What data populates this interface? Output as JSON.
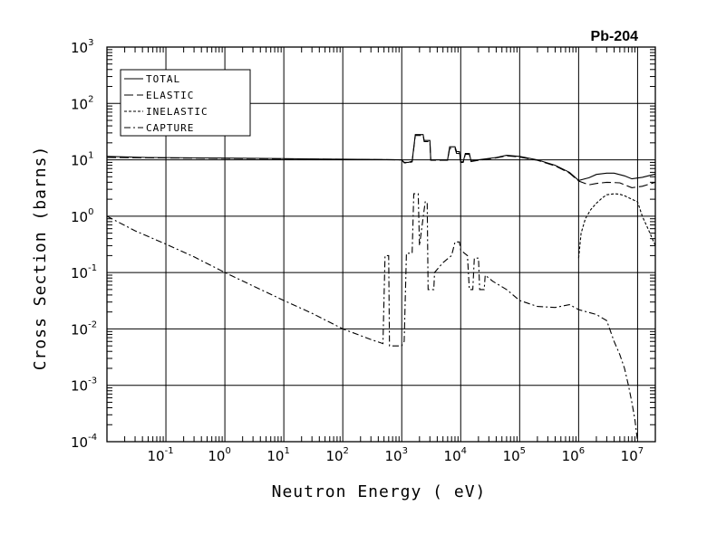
{
  "chart_data": {
    "type": "line",
    "title": "Pb-204",
    "xlabel": "Neutron Energy ( eV)",
    "ylabel": "Cross Section (barns)",
    "x_scale": "log",
    "y_scale": "log",
    "xlim": [
      0.01,
      20000000
    ],
    "ylim": [
      0.0001,
      1000
    ],
    "grid": true,
    "legend_position": "top-left",
    "x_ticks": [
      {
        "value": 0.1,
        "base": "10",
        "exp": "-1"
      },
      {
        "value": 1,
        "base": "10",
        "exp": "0"
      },
      {
        "value": 10,
        "base": "10",
        "exp": "1"
      },
      {
        "value": 100,
        "base": "10",
        "exp": "2"
      },
      {
        "value": 1000,
        "base": "10",
        "exp": "3"
      },
      {
        "value": 10000,
        "base": "10",
        "exp": "4"
      },
      {
        "value": 100000,
        "base": "10",
        "exp": "5"
      },
      {
        "value": 1000000,
        "base": "10",
        "exp": "6"
      },
      {
        "value": 10000000,
        "base": "10",
        "exp": "7"
      }
    ],
    "y_ticks": [
      {
        "value": 0.0001,
        "base": "10",
        "exp": "-4"
      },
      {
        "value": 0.001,
        "base": "10",
        "exp": "-3"
      },
      {
        "value": 0.01,
        "base": "10",
        "exp": "-2"
      },
      {
        "value": 0.1,
        "base": "10",
        "exp": "-1"
      },
      {
        "value": 1,
        "base": "10",
        "exp": "0"
      },
      {
        "value": 10,
        "base": "10",
        "exp": "1"
      },
      {
        "value": 100,
        "base": "10",
        "exp": "2"
      },
      {
        "value": 1000,
        "base": "10",
        "exp": "3"
      }
    ],
    "series": [
      {
        "name": "TOTAL",
        "dash": "solid",
        "points": [
          [
            0.01,
            11.5
          ],
          [
            0.05,
            11
          ],
          [
            0.5,
            10.8
          ],
          [
            5,
            10.6
          ],
          [
            50,
            10.3
          ],
          [
            500,
            10.1
          ],
          [
            1000,
            10
          ],
          [
            1100,
            9
          ],
          [
            1300,
            9
          ],
          [
            1500,
            9.5
          ],
          [
            1700,
            28
          ],
          [
            2300,
            28
          ],
          [
            2400,
            22
          ],
          [
            3000,
            22
          ],
          [
            3100,
            10
          ],
          [
            6000,
            10
          ],
          [
            6500,
            17
          ],
          [
            8000,
            17
          ],
          [
            8500,
            14
          ],
          [
            9500,
            14
          ],
          [
            10000,
            9.2
          ],
          [
            11000,
            9.2
          ],
          [
            12000,
            13
          ],
          [
            14000,
            13
          ],
          [
            15000,
            9.5
          ],
          [
            20000,
            10
          ],
          [
            40000,
            11
          ],
          [
            60000,
            12
          ],
          [
            100000,
            11.5
          ],
          [
            200000,
            10
          ],
          [
            400000,
            8
          ],
          [
            700000,
            6
          ],
          [
            1000000,
            4.3
          ],
          [
            1500000,
            4.8
          ],
          [
            2000000,
            5.5
          ],
          [
            3000000,
            5.8
          ],
          [
            4000000,
            5.8
          ],
          [
            6000000,
            5.2
          ],
          [
            8000000,
            4.6
          ],
          [
            12000000,
            4.9
          ],
          [
            20000000,
            5.6
          ]
        ]
      },
      {
        "name": "ELASTIC",
        "dash": "long",
        "points": [
          [
            0.01,
            11
          ],
          [
            0.1,
            10.8
          ],
          [
            1,
            10.6
          ],
          [
            10,
            10.4
          ],
          [
            100,
            10.2
          ],
          [
            1000,
            10
          ],
          [
            1100,
            8.8
          ],
          [
            1300,
            8.8
          ],
          [
            1500,
            9.2
          ],
          [
            1700,
            27
          ],
          [
            2300,
            27
          ],
          [
            2400,
            21
          ],
          [
            3000,
            21
          ],
          [
            3100,
            9.8
          ],
          [
            6000,
            9.8
          ],
          [
            6500,
            16
          ],
          [
            8000,
            16
          ],
          [
            8500,
            13
          ],
          [
            9500,
            13
          ],
          [
            10000,
            9
          ],
          [
            11000,
            9
          ],
          [
            12000,
            12.5
          ],
          [
            14000,
            12.5
          ],
          [
            15000,
            9.3
          ],
          [
            20000,
            9.8
          ],
          [
            40000,
            10.8
          ],
          [
            60000,
            11.8
          ],
          [
            100000,
            11.2
          ],
          [
            200000,
            9.8
          ],
          [
            400000,
            7.8
          ],
          [
            700000,
            5.8
          ],
          [
            1000000,
            4.2
          ],
          [
            1500000,
            3.6
          ],
          [
            2000000,
            3.8
          ],
          [
            3000000,
            4
          ],
          [
            5000000,
            3.9
          ],
          [
            8000000,
            3.2
          ],
          [
            12000000,
            3.4
          ],
          [
            20000000,
            4
          ]
        ]
      },
      {
        "name": "INELASTIC",
        "dash": "short",
        "points": [
          [
            1000000,
            0.18
          ],
          [
            1100000,
            0.5
          ],
          [
            1300000,
            0.9
          ],
          [
            1600000,
            1.3
          ],
          [
            2000000,
            1.7
          ],
          [
            2500000,
            2.1
          ],
          [
            3000000,
            2.4
          ],
          [
            4000000,
            2.5
          ],
          [
            5000000,
            2.45
          ],
          [
            6000000,
            2.3
          ],
          [
            8000000,
            2
          ],
          [
            10000000,
            1.8
          ],
          [
            12000000,
            1
          ],
          [
            15000000,
            0.6
          ],
          [
            20000000,
            0.3
          ]
        ]
      },
      {
        "name": "CAPTURE",
        "dash": "dashdot",
        "points": [
          [
            0.01,
            1
          ],
          [
            0.03,
            0.55
          ],
          [
            0.1,
            0.32
          ],
          [
            0.3,
            0.19
          ],
          [
            1,
            0.1
          ],
          [
            3,
            0.058
          ],
          [
            10,
            0.032
          ],
          [
            30,
            0.019
          ],
          [
            100,
            0.01
          ],
          [
            300,
            0.0065
          ],
          [
            480,
            0.0055
          ],
          [
            520,
            0.2
          ],
          [
            600,
            0.2
          ],
          [
            620,
            0.005
          ],
          [
            1000,
            0.005
          ],
          [
            1100,
            0.006
          ],
          [
            1200,
            0.22
          ],
          [
            1500,
            0.22
          ],
          [
            1600,
            2.5
          ],
          [
            1900,
            2.5
          ],
          [
            2000,
            0.3
          ],
          [
            2500,
            1.8
          ],
          [
            2700,
            1.8
          ],
          [
            2800,
            0.05
          ],
          [
            3500,
            0.05
          ],
          [
            3600,
            0.1
          ],
          [
            5000,
            0.15
          ],
          [
            7000,
            0.2
          ],
          [
            8000,
            0.35
          ],
          [
            9500,
            0.35
          ],
          [
            10000,
            0.25
          ],
          [
            13000,
            0.2
          ],
          [
            14000,
            0.05
          ],
          [
            16000,
            0.05
          ],
          [
            17000,
            0.18
          ],
          [
            20000,
            0.18
          ],
          [
            21000,
            0.05
          ],
          [
            25000,
            0.05
          ],
          [
            26000,
            0.09
          ],
          [
            35000,
            0.07
          ],
          [
            60000,
            0.05
          ],
          [
            100000,
            0.032
          ],
          [
            200000,
            0.025
          ],
          [
            400000,
            0.024
          ],
          [
            700000,
            0.027
          ],
          [
            1000000,
            0.022
          ],
          [
            2000000,
            0.018
          ],
          [
            3000000,
            0.014
          ],
          [
            4000000,
            0.006
          ],
          [
            5000000,
            0.0035
          ],
          [
            6000000,
            0.002
          ],
          [
            7000000,
            0.001
          ],
          [
            8000000,
            0.0005
          ],
          [
            9000000,
            0.00025
          ],
          [
            10000000,
            0.0001
          ]
        ]
      }
    ]
  }
}
